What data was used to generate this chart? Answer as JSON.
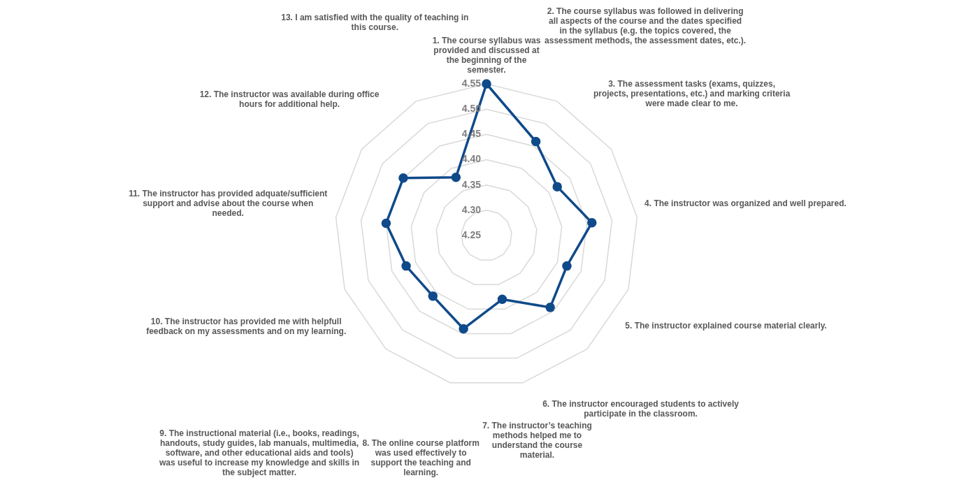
{
  "chart_data": {
    "type": "radar",
    "categories": [
      "1. The course syllabus was provided and discussed at the beginning of the semester.",
      "2. The course syllabus was followed in delivering all aspects of the course and the dates specified in the syllabus (e.g. the topics covered, the assessment methods, the assessment dates, etc.).",
      "3. The assessment tasks (exams, quizzes, projects, presentations, etc.) and marking criteria were made clear to me.",
      "4. The instructor was organized and well prepared.",
      "5. The instructor explained course material clearly.",
      "6. The instructor encouraged students to actively participate in the classroom.",
      "7. The instructor’s teaching methods helped me to understand the course material.",
      "8. The online course platform was used effectively to support the teaching and learning.",
      "9. The instructional material (i.e., books, readings, handouts, study guides, lab manuals, multimedia, software, and other educational aids and tools) was useful to increase my knowledge and skills in the subject matter.",
      "10. The instructor has provided me with helpfull feedback on my assessments and on my learning.",
      "11. The instructor has provided adquate/sufficient support and advise about the course when needed.",
      "12. The instructor was available during office hours for additional help.",
      "13. I am satisfied with the quality of teaching in this course."
    ],
    "series": [
      {
        "color": "#0f4a8a",
        "values": [
          4.55,
          4.46,
          4.42,
          4.46,
          4.42,
          4.44,
          4.38,
          4.44,
          4.41,
          4.42,
          4.45,
          4.45,
          4.38
        ]
      }
    ],
    "ylim": [
      4.25,
      4.55
    ],
    "yticks": [
      {
        "value": 4.25,
        "label": "4.25"
      },
      {
        "value": 4.3,
        "label": "4.30"
      },
      {
        "value": 4.35,
        "label": "4.35"
      },
      {
        "value": 4.4,
        "label": "4.40"
      },
      {
        "value": 4.45,
        "label": "4.45"
      },
      {
        "value": 4.5,
        "label": "4.50"
      },
      {
        "value": 4.55,
        "label": "4.55"
      }
    ],
    "grid": true,
    "legend": false,
    "marker": "circle",
    "line_style": "solid"
  }
}
